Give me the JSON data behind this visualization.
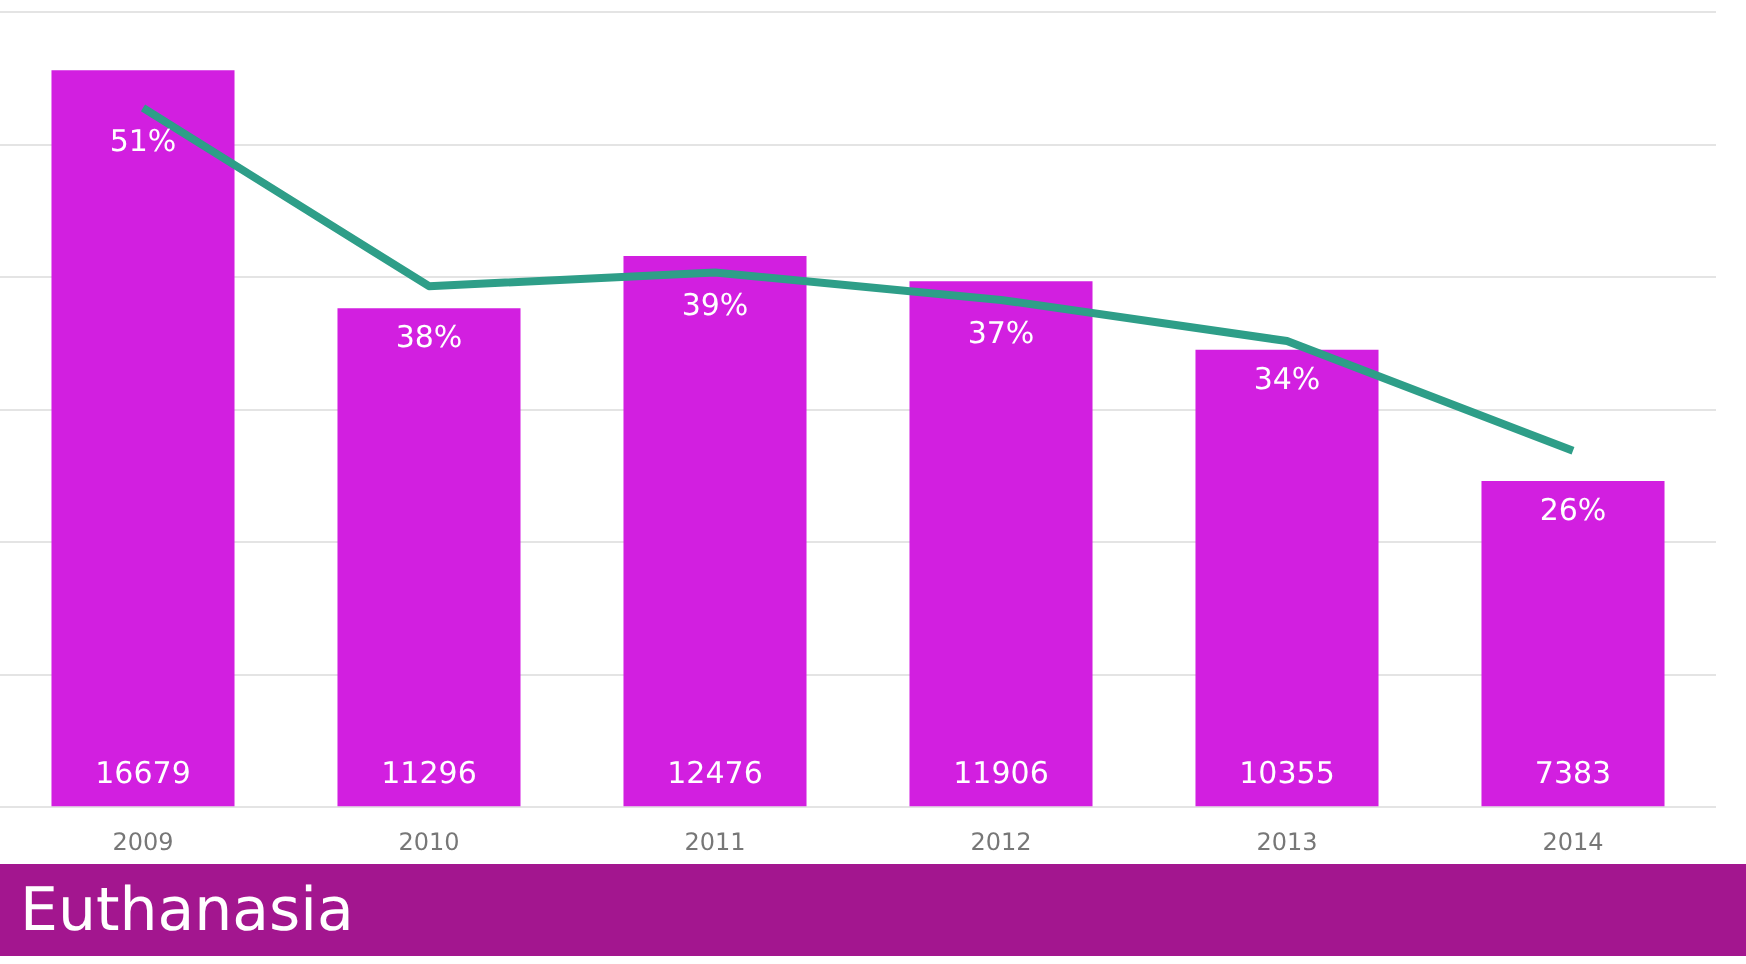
{
  "chart_data": {
    "type": "bar",
    "title": "Euthanasia",
    "categories": [
      "2009",
      "2010",
      "2011",
      "2012",
      "2013",
      "2014"
    ],
    "series": [
      {
        "color": "#d21fe0",
        "values": [
          16679,
          11296,
          12476,
          11906,
          10355,
          7383
        ]
      },
      {
        "type": "line",
        "axis": "y2",
        "color": "#2e9e88",
        "values": [
          51,
          38,
          39,
          37,
          34,
          26
        ],
        "value_labels": [
          "51%",
          "38%",
          "39%",
          "37%",
          "34%",
          "26%"
        ]
      }
    ],
    "ylim": [
      0,
      18000
    ],
    "yticks": [
      {
        "value": 0,
        "label": null
      },
      {
        "value": 3000,
        "label": null
      },
      {
        "value": 6000,
        "label": null
      },
      {
        "value": 9000,
        "label": null
      },
      {
        "value": 12000,
        "label": null
      },
      {
        "value": 15000,
        "label": null
      },
      {
        "value": 18000,
        "label": null
      }
    ],
    "y2lim": [
      0,
      58
    ],
    "grid": "y",
    "legend": false,
    "tick_labels": "x",
    "data_labels": true,
    "marker": "none"
  }
}
